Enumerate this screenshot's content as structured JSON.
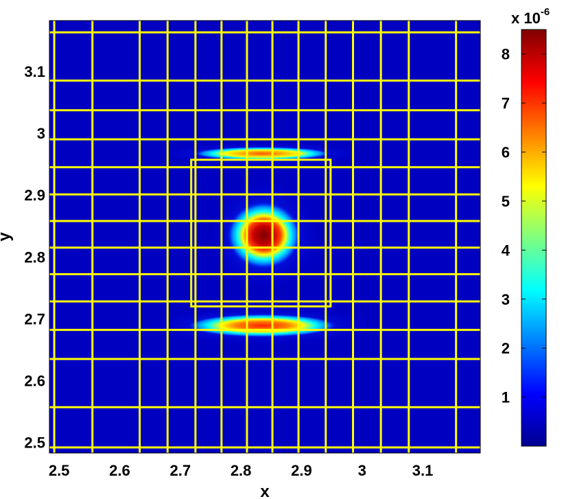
{
  "chart_data": {
    "type": "heatmap",
    "xlabel": "x",
    "ylabel": "y",
    "xlim": [
      2.484,
      3.195
    ],
    "ylim": [
      2.483,
      3.182
    ],
    "x_ticks": [
      {
        "value": 2.5,
        "label": "2.5"
      },
      {
        "value": 2.6,
        "label": "2.6"
      },
      {
        "value": 2.7,
        "label": "2.7"
      },
      {
        "value": 2.8,
        "label": "2.8"
      },
      {
        "value": 2.9,
        "label": "2.9"
      },
      {
        "value": 3.0,
        "label": "3"
      },
      {
        "value": 3.1,
        "label": "3.1"
      }
    ],
    "y_ticks": [
      {
        "value": 2.5,
        "label": "2.5"
      },
      {
        "value": 2.6,
        "label": "2.6"
      },
      {
        "value": 2.7,
        "label": "2.7"
      },
      {
        "value": 2.8,
        "label": "2.8"
      },
      {
        "value": 2.9,
        "label": "2.9"
      },
      {
        "value": 3.0,
        "label": "3"
      },
      {
        "value": 3.1,
        "label": "3.1"
      }
    ],
    "colorbar": {
      "min": 0.0,
      "max": 8.5,
      "ticks": [
        {
          "value": 1,
          "label": "1"
        },
        {
          "value": 2,
          "label": "2"
        },
        {
          "value": 3,
          "label": "3"
        },
        {
          "value": 4,
          "label": "4"
        },
        {
          "value": 5,
          "label": "5"
        },
        {
          "value": 6,
          "label": "6"
        },
        {
          "value": 7,
          "label": "7"
        },
        {
          "value": 8,
          "label": "8"
        }
      ],
      "multiplier_base": "x 10",
      "multiplier_exponent": "-6",
      "colormap": "jet"
    },
    "grid_color": "#ffff00",
    "grid_lines_x": [
      2.492,
      2.555,
      2.633,
      2.679,
      2.725,
      2.768,
      2.81,
      2.852,
      2.895,
      2.94,
      2.985,
      3.031,
      3.077,
      3.155
    ],
    "grid_lines_y": [
      2.492,
      2.557,
      2.635,
      2.682,
      2.728,
      2.772,
      2.815,
      2.858,
      2.901,
      2.945,
      2.99,
      3.037,
      3.085,
      3.163
    ],
    "box_outline": {
      "x": [
        2.718,
        2.948
      ],
      "y": [
        2.72,
        2.957
      ]
    },
    "features": [
      {
        "shape": "ellipse",
        "x": 2.838,
        "y": 2.835,
        "rx": 0.042,
        "ry": 0.035,
        "peak": 8.4
      },
      {
        "shape": "band",
        "x": 2.835,
        "y": 2.689,
        "rx": 0.085,
        "ry": 0.012,
        "peak": 6.9
      },
      {
        "shape": "band",
        "x": 2.835,
        "y": 2.967,
        "rx": 0.078,
        "ry": 0.007,
        "peak": 6.1
      }
    ]
  }
}
